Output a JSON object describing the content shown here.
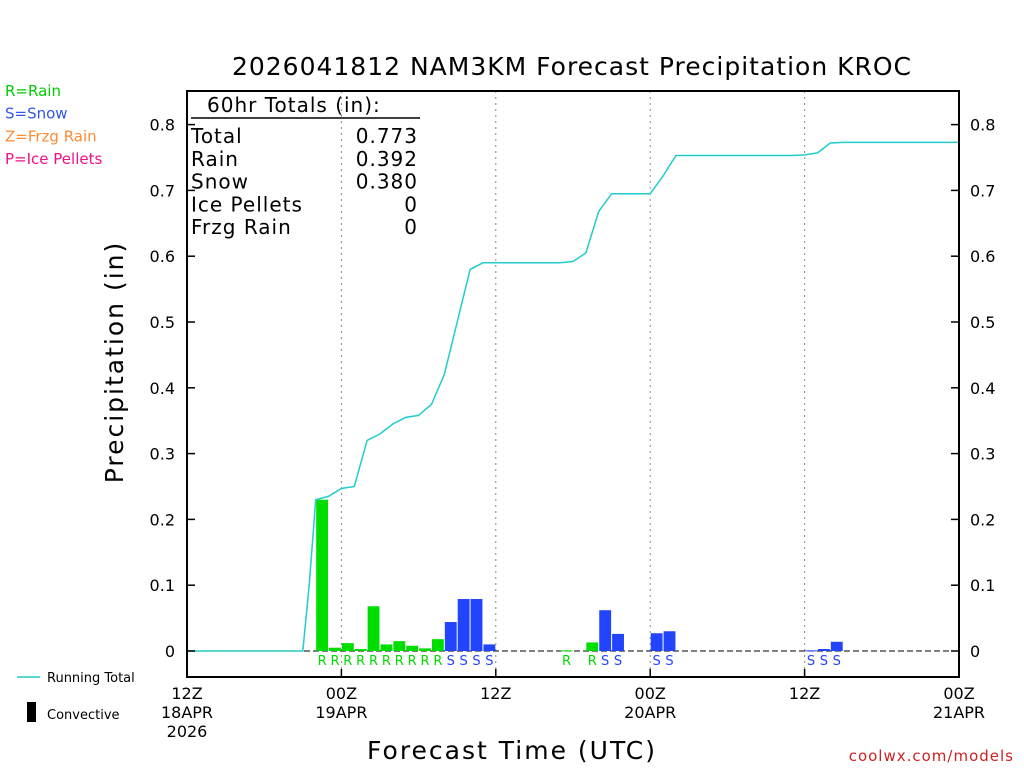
{
  "legend_left": [
    {
      "label": "R=Rain",
      "color": "#00cc00"
    },
    {
      "label": "S=Snow",
      "color": "#3355ee"
    },
    {
      "label": "Z=Frzg Rain",
      "color": "#ff8c33"
    },
    {
      "label": "P=Ice Pellets",
      "color": "#ee1188"
    }
  ],
  "legend_bottom": {
    "running_total": "Running Total",
    "convective": "Convective"
  },
  "totals_box": {
    "title": "60hr Totals (in):",
    "rows": [
      {
        "label": "Total",
        "value": "0.773"
      },
      {
        "label": "Rain",
        "value": "0.392"
      },
      {
        "label": "Snow",
        "value": "0.380"
      },
      {
        "label": "Ice Pellets",
        "value": "0"
      },
      {
        "label": "Frzg Rain",
        "value": "0"
      }
    ]
  },
  "credit": "coolwx.com/models",
  "colors": {
    "rain": "#00dd00",
    "snow": "#2244ff",
    "running_total": "#22cccc",
    "credit": "#cc2222"
  },
  "chart_data": {
    "type": "bar",
    "title": "2026041812 NAM3KM Forecast Precipitation KROC",
    "xlabel": "Forecast Time (UTC)",
    "ylabel": "Precipitation (in)",
    "ylim": [
      -0.04,
      0.85
    ],
    "xlim": [
      0,
      60
    ],
    "yticks": [
      0,
      0.1,
      0.2,
      0.3,
      0.4,
      0.5,
      0.6,
      0.7,
      0.8
    ],
    "ytick_labels": [
      "0",
      "0.1",
      "0.2",
      "0.3",
      "0.4",
      "0.5",
      "0.6",
      "0.7",
      "0.8"
    ],
    "xticks": [
      {
        "hour": 0,
        "lines": [
          "12Z",
          "18APR",
          "2026"
        ]
      },
      {
        "hour": 12,
        "lines": [
          "00Z",
          "19APR"
        ]
      },
      {
        "hour": 24,
        "lines": [
          "12Z"
        ]
      },
      {
        "hour": 36,
        "lines": [
          "00Z",
          "20APR"
        ]
      },
      {
        "hour": 48,
        "lines": [
          "12Z"
        ]
      },
      {
        "hour": 60,
        "lines": [
          "00Z",
          "21APR"
        ]
      }
    ],
    "gridlines_hours": [
      12,
      24,
      36,
      48
    ],
    "bars": [
      {
        "hour": 10,
        "value": 0.23,
        "type": "R"
      },
      {
        "hour": 11,
        "value": 0.005,
        "type": "R"
      },
      {
        "hour": 12,
        "value": 0.012,
        "type": "R"
      },
      {
        "hour": 13,
        "value": 0.003,
        "type": "R"
      },
      {
        "hour": 14,
        "value": 0.068,
        "type": "R"
      },
      {
        "hour": 15,
        "value": 0.01,
        "type": "R"
      },
      {
        "hour": 16,
        "value": 0.015,
        "type": "R"
      },
      {
        "hour": 17,
        "value": 0.008,
        "type": "R"
      },
      {
        "hour": 18,
        "value": 0.004,
        "type": "R"
      },
      {
        "hour": 19,
        "value": 0.018,
        "type": "R"
      },
      {
        "hour": 20,
        "value": 0.044,
        "type": "S"
      },
      {
        "hour": 21,
        "value": 0.079,
        "type": "S"
      },
      {
        "hour": 22,
        "value": 0.079,
        "type": "S"
      },
      {
        "hour": 23,
        "value": 0.01,
        "type": "S"
      },
      {
        "hour": 29,
        "value": 0.001,
        "type": "R"
      },
      {
        "hour": 31,
        "value": 0.013,
        "type": "R"
      },
      {
        "hour": 32,
        "value": 0.062,
        "type": "S"
      },
      {
        "hour": 33,
        "value": 0.026,
        "type": "S"
      },
      {
        "hour": 36,
        "value": 0.027,
        "type": "S"
      },
      {
        "hour": 37,
        "value": 0.03,
        "type": "S"
      },
      {
        "hour": 48,
        "value": 0.001,
        "type": "S"
      },
      {
        "hour": 49,
        "value": 0.003,
        "type": "S"
      },
      {
        "hour": 50,
        "value": 0.014,
        "type": "S"
      }
    ],
    "running_total": {
      "x": [
        0,
        9.0,
        9.5,
        10,
        11,
        12,
        13,
        14,
        15,
        16,
        17,
        18,
        19,
        20,
        21,
        22,
        23,
        24,
        29,
        30,
        31,
        32,
        33,
        34,
        35,
        36,
        37,
        38,
        47,
        48,
        49,
        50,
        51,
        60
      ],
      "y": [
        0,
        0,
        0.1,
        0.23,
        0.235,
        0.247,
        0.25,
        0.32,
        0.33,
        0.345,
        0.355,
        0.358,
        0.375,
        0.42,
        0.5,
        0.58,
        0.59,
        0.59,
        0.59,
        0.592,
        0.605,
        0.668,
        0.695,
        0.695,
        0.695,
        0.695,
        0.722,
        0.753,
        0.753,
        0.754,
        0.757,
        0.772,
        0.773,
        0.773
      ]
    }
  }
}
